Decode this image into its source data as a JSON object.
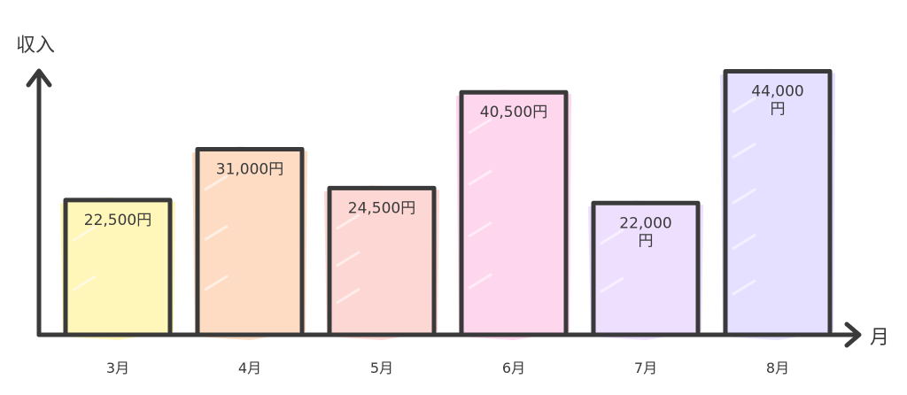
{
  "chart_data": {
    "type": "bar",
    "title": "",
    "ylabel": "収入",
    "xlabel": "月",
    "ylim": [
      0,
      50000
    ],
    "categories": [
      "3月",
      "4月",
      "5月",
      "6月",
      "7月",
      "8月"
    ],
    "values": [
      22500,
      31000,
      24500,
      40500,
      22000,
      44000
    ],
    "data_labels": [
      [
        "22,500円"
      ],
      [
        "31,000円"
      ],
      [
        "24,500円"
      ],
      [
        "40,500円"
      ],
      [
        "22,000",
        "円"
      ],
      [
        "44,000",
        "円"
      ]
    ],
    "colors": [
      "#fff5b3",
      "#fed9bf",
      "#fdd4d0",
      "#fed2ec",
      "#eedcff",
      "#e3ddff"
    ],
    "grid": false
  }
}
